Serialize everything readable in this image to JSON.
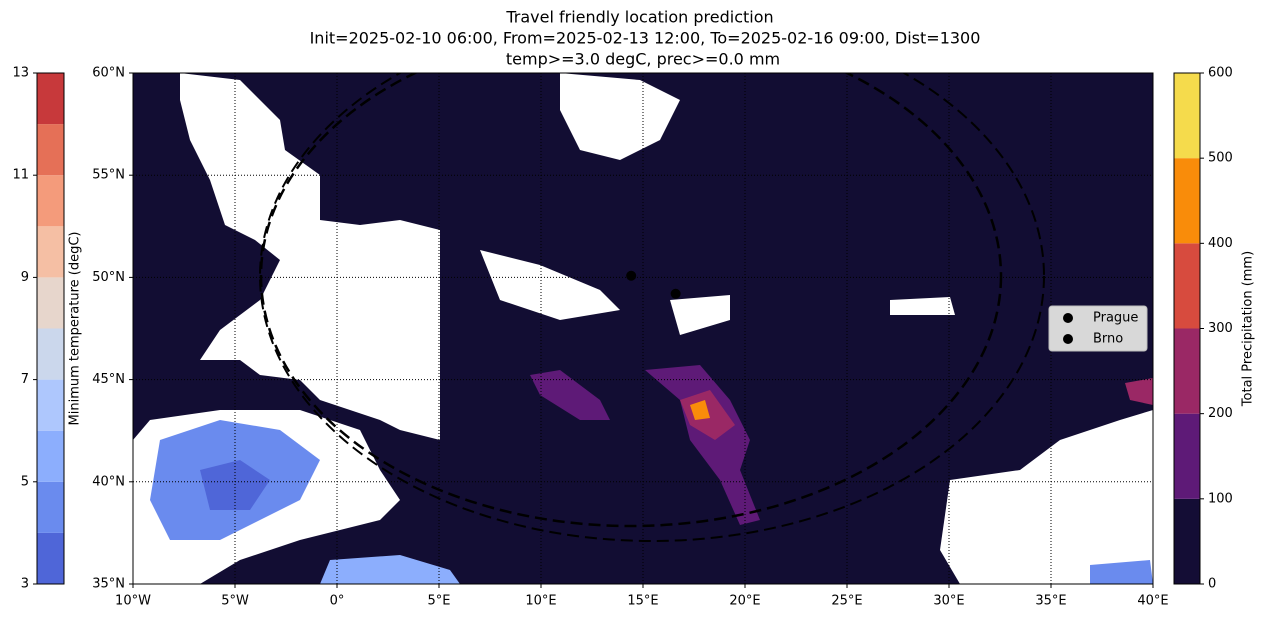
{
  "chart_data": {
    "type": "map",
    "title": [
      "Travel friendly location prediction",
      "Init=2025-02-10 06:00, From=2025-02-13 12:00, To=2025-02-16 09:00, Dist=1300",
      "temp>=3.0 degC, prec>=0.0 mm"
    ],
    "xlim": [
      -10,
      40
    ],
    "ylim": [
      35,
      60
    ],
    "xticks": [
      {
        "value": -10,
        "label": "10°W"
      },
      {
        "value": -5,
        "label": "5°W"
      },
      {
        "value": 0,
        "label": "0°"
      },
      {
        "value": 5,
        "label": "5°E"
      },
      {
        "value": 10,
        "label": "10°E"
      },
      {
        "value": 15,
        "label": "15°E"
      },
      {
        "value": 20,
        "label": "20°E"
      },
      {
        "value": 25,
        "label": "25°E"
      },
      {
        "value": 30,
        "label": "30°E"
      },
      {
        "value": 35,
        "label": "35°E"
      },
      {
        "value": 40,
        "label": "40°E"
      }
    ],
    "yticks": [
      {
        "value": 35,
        "label": "35°N"
      },
      {
        "value": 40,
        "label": "40°N"
      },
      {
        "value": 45,
        "label": "45°N"
      },
      {
        "value": 50,
        "label": "50°N"
      },
      {
        "value": 55,
        "label": "55°N"
      },
      {
        "value": 60,
        "label": "60°N"
      }
    ],
    "grid": true,
    "series": [
      {
        "name": "Prague",
        "color": "#000000",
        "x": [
          14.42
        ],
        "values": [
          50.08
        ]
      },
      {
        "name": "Brno",
        "color": "#000000",
        "x": [
          16.6
        ],
        "values": [
          49.2
        ]
      }
    ],
    "legend": "right",
    "colorbars": [
      {
        "label": "Minimum temperature (degC)",
        "side": "left",
        "levels": [
          3,
          4,
          5,
          6,
          7,
          8,
          9,
          10,
          11,
          12,
          13
        ],
        "colors": [
          "#4f66d8",
          "#6a8bee",
          "#8caefd",
          "#aec7fd",
          "#cbd7ec",
          "#e7d6cc",
          "#f5bfa4",
          "#f49b7b",
          "#e57057",
          "#c7393b"
        ],
        "ticks": [
          3,
          5,
          7,
          9,
          11,
          13
        ]
      },
      {
        "label": "Total Precipitation (mm)",
        "side": "right",
        "levels": [
          0,
          100,
          200,
          300,
          400,
          500,
          600
        ],
        "colors": [
          "#140d35",
          "#5e1a77",
          "#9a2865",
          "#d74b3e",
          "#f98c0a",
          "#f5db4c"
        ],
        "ticks": [
          0,
          100,
          200,
          300,
          400,
          500,
          600
        ]
      }
    ]
  }
}
